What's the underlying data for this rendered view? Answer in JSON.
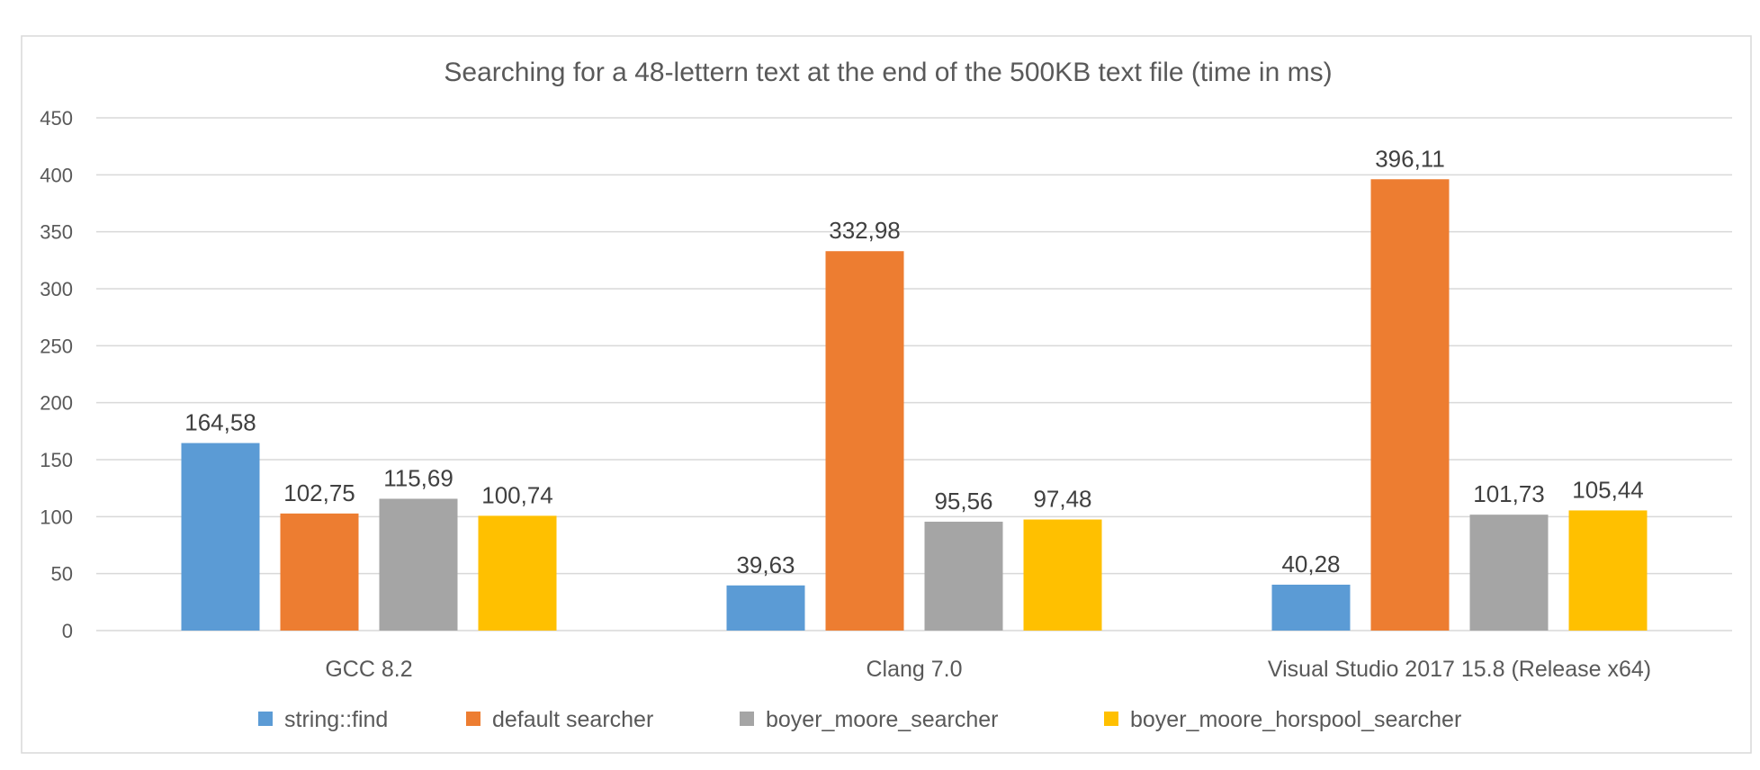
{
  "chart_data": {
    "type": "bar",
    "title": "Searching for a  48-lettern text at the end of the 500KB text file (time in ms)",
    "xlabel": "",
    "ylabel": "",
    "categories": [
      "GCC 8.2",
      "Clang 7.0",
      "Visual Studio 2017 15.8 (Release x64)"
    ],
    "ylim": [
      0,
      450
    ],
    "y_ticks": [
      0,
      50,
      100,
      150,
      200,
      250,
      300,
      350,
      400,
      450
    ],
    "grid": true,
    "legend_position": "bottom",
    "series": [
      {
        "name": "string::find",
        "color": "#5B9BD5",
        "values": [
          164.58,
          39.63,
          40.28
        ],
        "labels": [
          "164,58",
          "39,63",
          "40,28"
        ]
      },
      {
        "name": "default searcher",
        "color": "#ED7D31",
        "values": [
          102.75,
          332.98,
          396.11
        ],
        "labels": [
          "102,75",
          "332,98",
          "396,11"
        ]
      },
      {
        "name": "boyer_moore_searcher",
        "color": "#A5A5A5",
        "values": [
          115.69,
          95.56,
          101.73
        ],
        "labels": [
          "115,69",
          "95,56",
          "101,73"
        ]
      },
      {
        "name": "boyer_moore_horspool_searcher",
        "color": "#FFC000",
        "values": [
          100.74,
          97.48,
          105.44
        ],
        "labels": [
          "100,74",
          "97,48",
          "105,44"
        ]
      }
    ]
  }
}
